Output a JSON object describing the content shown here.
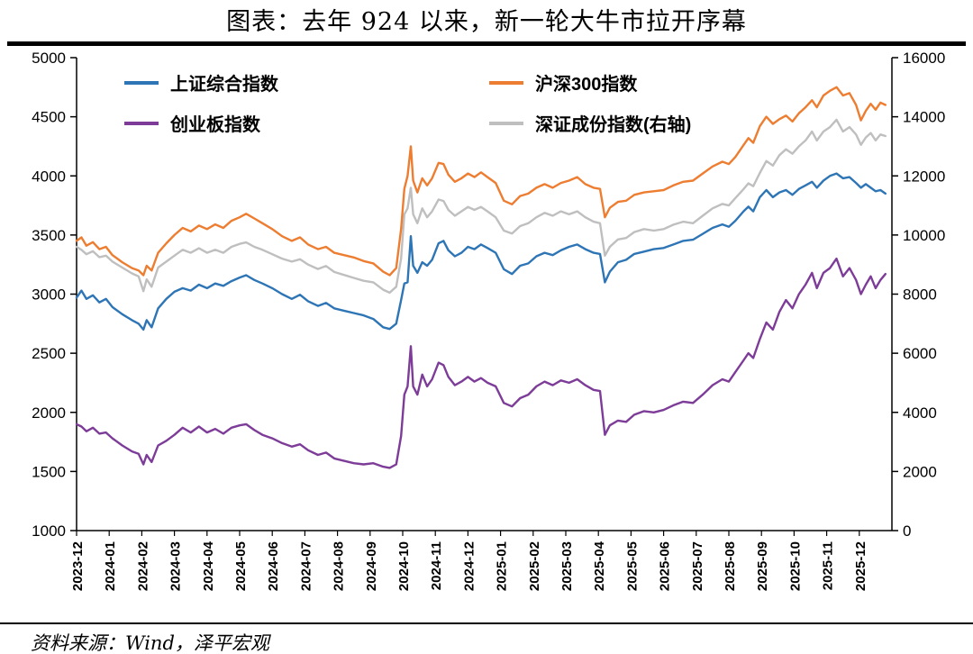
{
  "title": "图表：去年 924 以来，新一轮大牛市拉开序幕",
  "source": "资料来源：Wind，泽平宏观",
  "chart_data": {
    "type": "line",
    "title": "图表：去年 924 以来，新一轮大牛市拉开序幕",
    "grid": false,
    "legend_position": "top-left-inside",
    "x_unit": "months since 2023-12",
    "x_ticks": [
      "2023-12",
      "2024-01",
      "2024-02",
      "2024-03",
      "2024-04",
      "2024-05",
      "2024-06",
      "2024-07",
      "2024-08",
      "2024-09",
      "2024-10",
      "2024-11",
      "2024-12",
      "2025-01",
      "2025-02",
      "2025-03",
      "2025-04",
      "2025-05",
      "2025-06",
      "2025-07",
      "2025-08",
      "2025-09",
      "2025-10",
      "2025-11",
      "2025-12"
    ],
    "left_axis": {
      "min": 1000,
      "max": 5000,
      "ticks": [
        5000,
        4500,
        4000,
        3500,
        3000,
        2500,
        2000,
        1500,
        1000
      ]
    },
    "right_axis": {
      "min": 0,
      "max": 16000,
      "ticks": [
        16000,
        14000,
        12000,
        10000,
        8000,
        6000,
        4000,
        2000,
        0
      ]
    },
    "x": [
      0,
      0.15,
      0.3,
      0.5,
      0.7,
      0.9,
      1.1,
      1.4,
      1.7,
      1.9,
      2.05,
      2.15,
      2.3,
      2.5,
      2.75,
      3,
      3.25,
      3.5,
      3.75,
      4,
      4.25,
      4.5,
      4.75,
      5,
      5.2,
      5.45,
      5.7,
      6,
      6.3,
      6.6,
      6.85,
      7.1,
      7.4,
      7.65,
      7.9,
      8.2,
      8.5,
      8.8,
      9.1,
      9.4,
      9.6,
      9.8,
      9.95,
      10.05,
      10.15,
      10.25,
      10.32,
      10.45,
      10.6,
      10.75,
      10.9,
      11.1,
      11.25,
      11.4,
      11.6,
      11.8,
      12,
      12.2,
      12.4,
      12.6,
      12.85,
      13.1,
      13.35,
      13.6,
      13.85,
      14.1,
      14.35,
      14.6,
      14.85,
      15.1,
      15.35,
      15.6,
      15.85,
      16.05,
      16.2,
      16.35,
      16.6,
      16.85,
      17.1,
      17.4,
      17.7,
      18,
      18.3,
      18.6,
      18.9,
      19.2,
      19.5,
      19.8,
      20,
      20.2,
      20.45,
      20.6,
      20.75,
      20.95,
      21.15,
      21.35,
      21.55,
      21.75,
      21.95,
      22.15,
      22.35,
      22.55,
      22.7,
      22.9,
      23.1,
      23.3,
      23.5,
      23.7,
      23.9,
      24.05,
      24.2,
      24.35,
      24.5,
      24.65,
      24.8
    ],
    "series": [
      {
        "name": "上证综合指数",
        "color": "#2E75B6",
        "axis": "left",
        "values": [
          2970,
          3030,
          2960,
          2990,
          2930,
          2960,
          2890,
          2830,
          2780,
          2750,
          2700,
          2780,
          2720,
          2880,
          2960,
          3020,
          3050,
          3030,
          3080,
          3050,
          3090,
          3070,
          3110,
          3140,
          3160,
          3120,
          3090,
          3050,
          3000,
          2960,
          2995,
          2940,
          2900,
          2925,
          2880,
          2860,
          2840,
          2820,
          2790,
          2720,
          2705,
          2750,
          2950,
          3090,
          3100,
          3490,
          3240,
          3180,
          3270,
          3240,
          3290,
          3430,
          3450,
          3370,
          3320,
          3350,
          3400,
          3380,
          3420,
          3390,
          3350,
          3210,
          3170,
          3240,
          3260,
          3320,
          3350,
          3330,
          3370,
          3400,
          3420,
          3380,
          3350,
          3340,
          3100,
          3190,
          3270,
          3290,
          3340,
          3360,
          3380,
          3390,
          3420,
          3450,
          3460,
          3510,
          3560,
          3590,
          3570,
          3620,
          3700,
          3740,
          3700,
          3820,
          3880,
          3820,
          3860,
          3880,
          3840,
          3890,
          3920,
          3950,
          3900,
          3960,
          4000,
          4020,
          3980,
          3990,
          3940,
          3900,
          3930,
          3900,
          3870,
          3880,
          3850
        ]
      },
      {
        "name": "沪深300指数",
        "color": "#ED7D31",
        "axis": "left",
        "values": [
          3450,
          3480,
          3410,
          3440,
          3380,
          3400,
          3330,
          3270,
          3220,
          3200,
          3160,
          3240,
          3200,
          3350,
          3430,
          3500,
          3560,
          3530,
          3580,
          3550,
          3590,
          3560,
          3620,
          3650,
          3680,
          3640,
          3600,
          3550,
          3490,
          3450,
          3480,
          3420,
          3380,
          3400,
          3350,
          3330,
          3310,
          3280,
          3260,
          3190,
          3160,
          3220,
          3550,
          3890,
          4000,
          4250,
          3960,
          3860,
          3980,
          3920,
          3980,
          4110,
          4100,
          4010,
          3950,
          3980,
          4020,
          3990,
          4030,
          3990,
          3940,
          3790,
          3760,
          3830,
          3850,
          3900,
          3930,
          3900,
          3940,
          3960,
          3990,
          3930,
          3900,
          3890,
          3650,
          3730,
          3780,
          3790,
          3840,
          3860,
          3870,
          3880,
          3920,
          3950,
          3960,
          4020,
          4080,
          4120,
          4100,
          4160,
          4260,
          4320,
          4280,
          4420,
          4500,
          4440,
          4480,
          4510,
          4460,
          4530,
          4580,
          4640,
          4580,
          4680,
          4720,
          4750,
          4680,
          4700,
          4600,
          4470,
          4550,
          4610,
          4560,
          4620,
          4600
        ]
      },
      {
        "name": "创业板指数",
        "color": "#7D3C98",
        "axis": "left",
        "values": [
          1900,
          1880,
          1840,
          1870,
          1820,
          1830,
          1780,
          1720,
          1670,
          1650,
          1560,
          1640,
          1580,
          1720,
          1760,
          1810,
          1870,
          1830,
          1880,
          1830,
          1860,
          1820,
          1870,
          1890,
          1900,
          1850,
          1810,
          1780,
          1740,
          1710,
          1730,
          1680,
          1640,
          1660,
          1610,
          1590,
          1570,
          1560,
          1570,
          1540,
          1530,
          1560,
          1800,
          2150,
          2220,
          2560,
          2220,
          2150,
          2320,
          2220,
          2280,
          2420,
          2400,
          2300,
          2230,
          2260,
          2300,
          2260,
          2290,
          2250,
          2220,
          2080,
          2050,
          2120,
          2150,
          2220,
          2260,
          2230,
          2270,
          2250,
          2280,
          2230,
          2190,
          2180,
          1810,
          1890,
          1930,
          1920,
          1980,
          2010,
          2000,
          2020,
          2060,
          2090,
          2080,
          2150,
          2230,
          2280,
          2260,
          2340,
          2440,
          2500,
          2460,
          2620,
          2760,
          2700,
          2850,
          2950,
          2880,
          3000,
          3080,
          3180,
          3050,
          3180,
          3220,
          3300,
          3150,
          3220,
          3120,
          3000,
          3080,
          3150,
          3050,
          3120,
          3170
        ]
      },
      {
        "name": "深证成份指数(右轴)",
        "color": "#BFBFBF",
        "axis": "right",
        "values": [
          9600,
          9500,
          9350,
          9450,
          9250,
          9300,
          9100,
          8900,
          8700,
          8600,
          8100,
          8500,
          8250,
          8900,
          9100,
          9300,
          9500,
          9400,
          9550,
          9400,
          9500,
          9400,
          9600,
          9700,
          9750,
          9600,
          9500,
          9350,
          9200,
          9100,
          9180,
          9000,
          8850,
          8950,
          8750,
          8650,
          8550,
          8450,
          8400,
          8150,
          8050,
          8250,
          9200,
          10700,
          10900,
          11600,
          10700,
          10400,
          10900,
          10600,
          10800,
          11200,
          11150,
          10850,
          10650,
          10800,
          10950,
          10850,
          10950,
          10800,
          10600,
          10150,
          10050,
          10300,
          10400,
          10600,
          10750,
          10650,
          10800,
          10700,
          10800,
          10600,
          10450,
          10400,
          9300,
          9600,
          9850,
          9900,
          10100,
          10200,
          10150,
          10200,
          10350,
          10450,
          10400,
          10650,
          10900,
          11050,
          11000,
          11250,
          11550,
          11750,
          11650,
          12100,
          12500,
          12350,
          12700,
          12900,
          12750,
          13000,
          13200,
          13500,
          13200,
          13500,
          13650,
          13900,
          13500,
          13650,
          13400,
          13050,
          13300,
          13450,
          13200,
          13400,
          13350
        ]
      }
    ]
  }
}
